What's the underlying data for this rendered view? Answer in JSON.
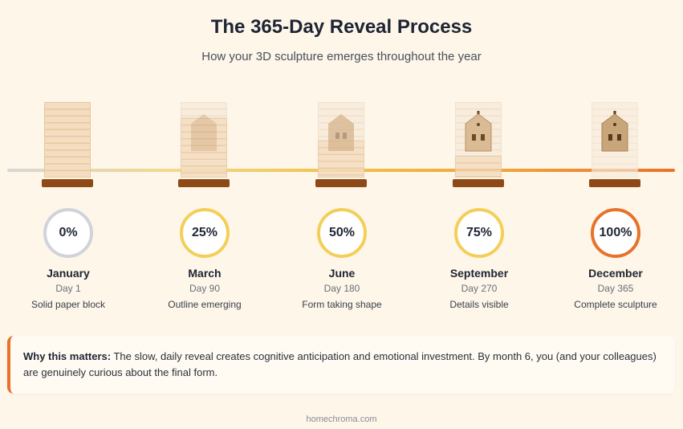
{
  "title": "The 365-Day Reveal Process",
  "subtitle": "How your 3D sculpture emerges throughout the year",
  "colors": {
    "background": "#fdf6e9",
    "base": "#8e4a16",
    "ring_start": "#d0d3da",
    "ring_mid": "#f3cf5a",
    "ring_end": "#e8722a",
    "accent": "#e8722a"
  },
  "stages": [
    {
      "percent": "0%",
      "month": "January",
      "day": "Day 1",
      "description": "Solid paper block",
      "progress": 0
    },
    {
      "percent": "25%",
      "month": "March",
      "day": "Day 90",
      "description": "Outline emerging",
      "progress": 0.25
    },
    {
      "percent": "50%",
      "month": "June",
      "day": "Day 180",
      "description": "Form taking shape",
      "progress": 0.5
    },
    {
      "percent": "75%",
      "month": "September",
      "day": "Day 270",
      "description": "Details visible",
      "progress": 0.75
    },
    {
      "percent": "100%",
      "month": "December",
      "day": "Day 365",
      "description": "Complete sculpture",
      "progress": 1
    }
  ],
  "note": {
    "label": "Why this matters:",
    "text": " The slow, daily reveal creates cognitive anticipation and emotional investment. By month 6, you (and your colleagues) are genuinely curious about the final form."
  },
  "footer": "homechroma.com"
}
